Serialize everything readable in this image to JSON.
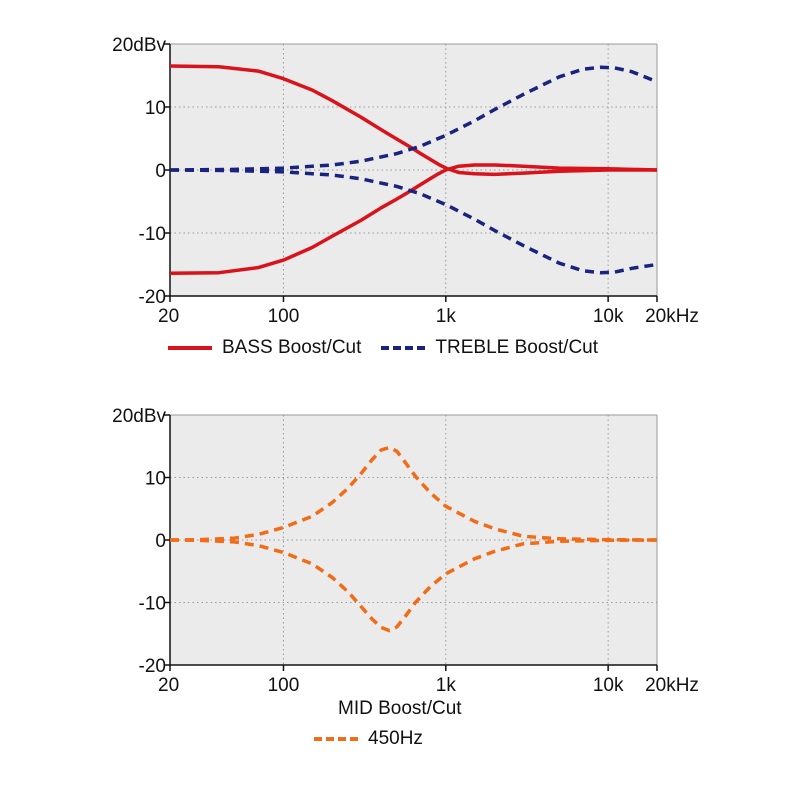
{
  "chart_data": [
    {
      "type": "line",
      "x_scale": "log",
      "xlim": [
        20,
        20000
      ],
      "ylim": [
        -20,
        20
      ],
      "grid": true,
      "y_unit_label": "20dBv",
      "y_ticks": [
        {
          "value": 20,
          "label": "20dBv"
        },
        {
          "value": 10,
          "label": "10"
        },
        {
          "value": 0,
          "label": "0"
        },
        {
          "value": -10,
          "label": "-10"
        },
        {
          "value": -20,
          "label": "-20"
        }
      ],
      "x_ticks": [
        {
          "value": 20,
          "label": "20"
        },
        {
          "value": 100,
          "label": "100"
        },
        {
          "value": 1000,
          "label": "1k"
        },
        {
          "value": 10000,
          "label": "10k"
        },
        {
          "value": 20000,
          "label": "20kHz"
        }
      ],
      "series": [
        {
          "name": "BASS Boost/Cut",
          "role": "boost",
          "color": "#d9121b",
          "style": "solid",
          "x": [
            20,
            40,
            70,
            100,
            150,
            200,
            300,
            400,
            500,
            600,
            700,
            800,
            900,
            1000,
            1200,
            1500,
            2000,
            3000,
            5000,
            10000,
            20000
          ],
          "y": [
            16.5,
            16.4,
            15.7,
            14.5,
            12.7,
            11.0,
            8.4,
            6.4,
            4.9,
            3.7,
            2.6,
            1.7,
            0.9,
            0.3,
            -0.4,
            -0.6,
            -0.7,
            -0.5,
            -0.2,
            0.0,
            0.0
          ]
        },
        {
          "name": "BASS Boost/Cut",
          "role": "cut",
          "color": "#d9121b",
          "style": "solid",
          "x": [
            20,
            40,
            70,
            100,
            150,
            200,
            300,
            400,
            500,
            600,
            700,
            800,
            900,
            1000,
            1200,
            1500,
            2000,
            3000,
            5000,
            10000,
            20000
          ],
          "y": [
            -16.4,
            -16.3,
            -15.5,
            -14.3,
            -12.3,
            -10.5,
            -8.0,
            -6.0,
            -4.6,
            -3.4,
            -2.3,
            -1.4,
            -0.6,
            0.0,
            0.6,
            0.8,
            0.8,
            0.6,
            0.3,
            0.2,
            0.0
          ]
        },
        {
          "name": "TREBLE Boost/Cut",
          "role": "boost",
          "color": "#1a237e",
          "style": "dashed",
          "x": [
            20,
            50,
            100,
            200,
            300,
            500,
            700,
            1000,
            1500,
            2000,
            3000,
            5000,
            7000,
            9000,
            11000,
            14000,
            20000
          ],
          "y": [
            0.0,
            0.1,
            0.3,
            0.8,
            1.4,
            2.6,
            3.8,
            5.5,
            7.8,
            9.6,
            12.0,
            14.8,
            16.0,
            16.3,
            16.2,
            15.6,
            14.0
          ]
        },
        {
          "name": "TREBLE Boost/Cut",
          "role": "cut",
          "color": "#1a237e",
          "style": "dashed",
          "x": [
            20,
            50,
            100,
            200,
            300,
            500,
            700,
            1000,
            1500,
            2000,
            3000,
            5000,
            7000,
            9000,
            11000,
            14000,
            20000
          ],
          "y": [
            0.0,
            -0.1,
            -0.3,
            -0.8,
            -1.4,
            -2.6,
            -3.8,
            -5.5,
            -7.8,
            -9.6,
            -12.0,
            -14.8,
            -16.0,
            -16.3,
            -16.2,
            -15.6,
            -15.0
          ]
        }
      ],
      "legend": [
        {
          "label": "BASS Boost/Cut",
          "style": "solid",
          "color": "#d9121b"
        },
        {
          "label": "TREBLE Boost/Cut",
          "style": "dashed",
          "color": "#1a237e"
        }
      ],
      "legend_position": "bottom"
    },
    {
      "type": "line",
      "x_scale": "log",
      "xlim": [
        20,
        20000
      ],
      "ylim": [
        -20,
        20
      ],
      "grid": true,
      "y_unit_label": "20dBv",
      "y_ticks": [
        {
          "value": 20,
          "label": "20dBv"
        },
        {
          "value": 10,
          "label": "10"
        },
        {
          "value": 0,
          "label": "0"
        },
        {
          "value": -10,
          "label": "-10"
        },
        {
          "value": -20,
          "label": "-20"
        }
      ],
      "x_ticks": [
        {
          "value": 20,
          "label": "20"
        },
        {
          "value": 100,
          "label": "100"
        },
        {
          "value": 1000,
          "label": "1k"
        },
        {
          "value": 10000,
          "label": "10k"
        },
        {
          "value": 20000,
          "label": "20kHz"
        }
      ],
      "title": "MID Boost/Cut",
      "series": [
        {
          "name": "450Hz",
          "role": "boost",
          "color": "#f26b16",
          "style": "dashed",
          "x": [
            20,
            30,
            50,
            70,
            100,
            150,
            200,
            250,
            300,
            350,
            400,
            450,
            500,
            560,
            650,
            800,
            1000,
            1500,
            2000,
            3000,
            5000,
            10000,
            20000
          ],
          "y": [
            0.0,
            0.05,
            0.3,
            0.9,
            2.0,
            3.8,
            6.0,
            8.3,
            10.6,
            12.8,
            14.4,
            14.8,
            14.2,
            12.5,
            10.2,
            7.6,
            5.4,
            3.0,
            1.8,
            0.6,
            0.2,
            0.05,
            0.0
          ]
        },
        {
          "name": "450Hz",
          "role": "cut",
          "color": "#f26b16",
          "style": "dashed",
          "x": [
            20,
            30,
            50,
            70,
            100,
            150,
            200,
            250,
            300,
            350,
            400,
            450,
            500,
            560,
            650,
            800,
            1000,
            1500,
            2000,
            3000,
            5000,
            10000,
            20000
          ],
          "y": [
            0.0,
            -0.05,
            -0.3,
            -0.9,
            -2.0,
            -3.8,
            -6.0,
            -8.3,
            -10.6,
            -12.6,
            -14.0,
            -14.5,
            -13.9,
            -12.3,
            -10.0,
            -7.5,
            -5.4,
            -3.0,
            -1.8,
            -0.6,
            -0.2,
            -0.05,
            0.0
          ]
        }
      ],
      "legend": [
        {
          "label": "450Hz",
          "style": "dashed",
          "color": "#f26b16"
        }
      ],
      "legend_position": "bottom"
    }
  ]
}
